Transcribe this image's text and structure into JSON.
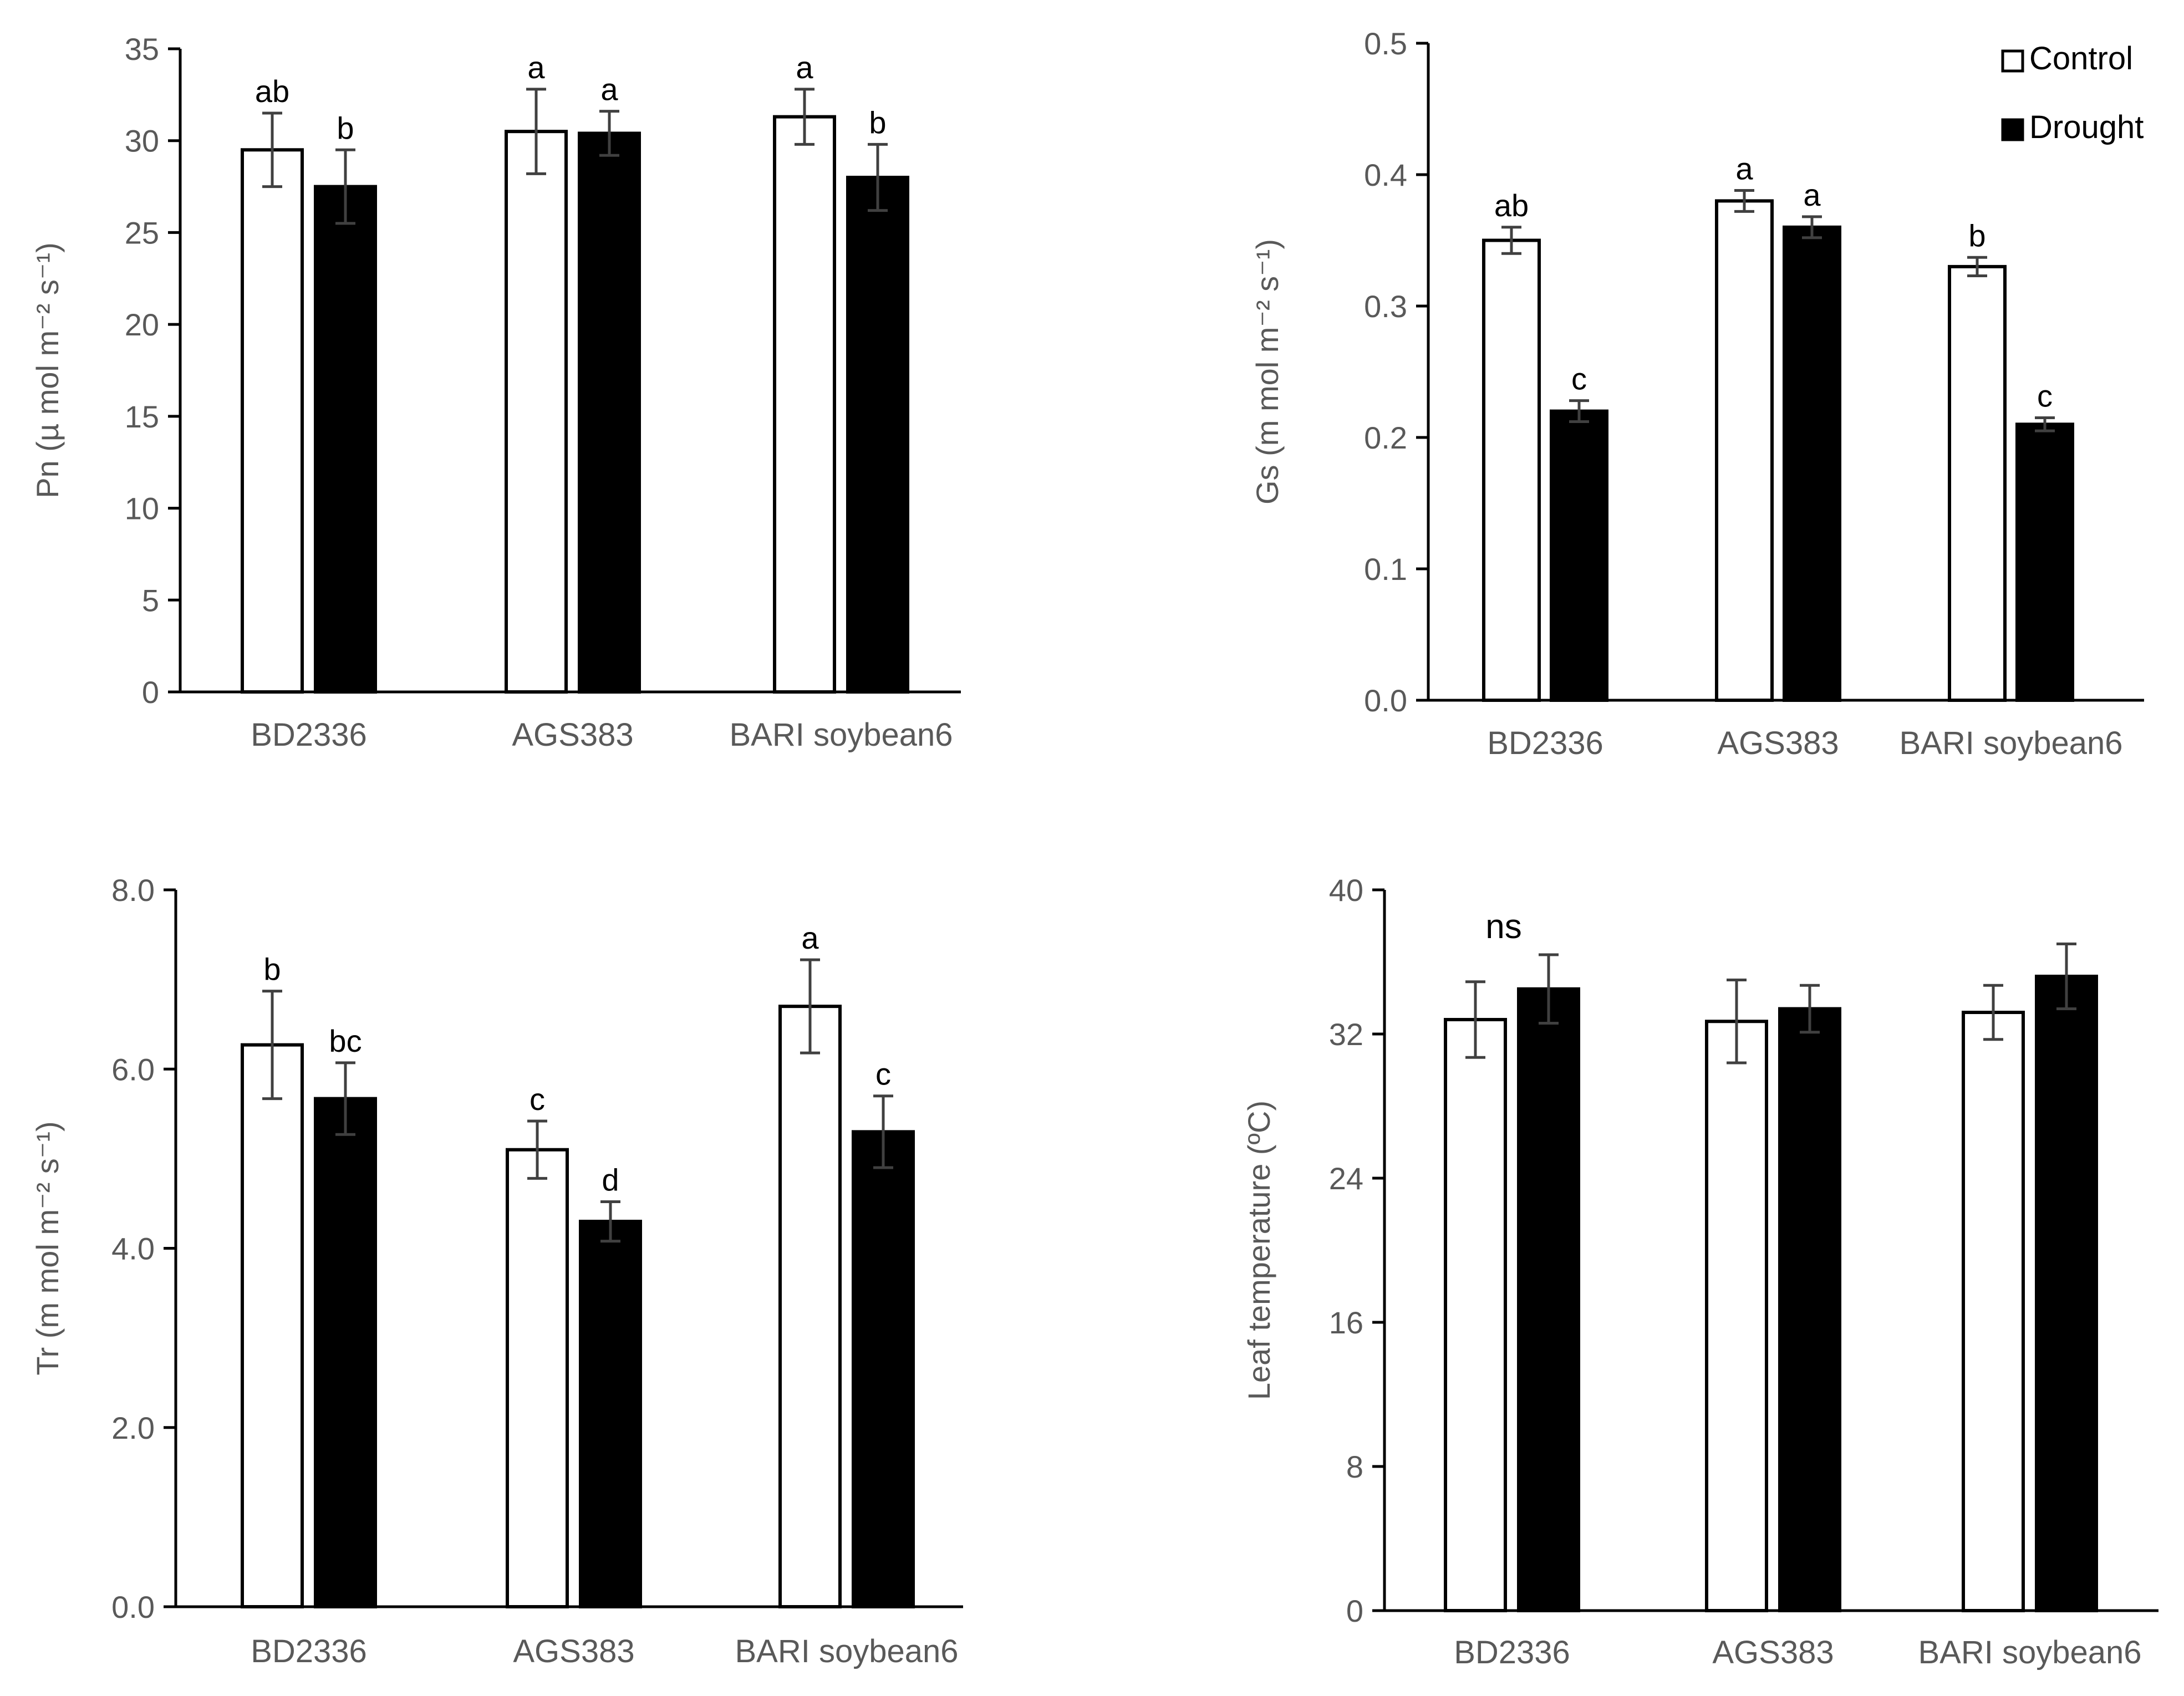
{
  "legend": {
    "entries": [
      {
        "label": "Control",
        "fill": "#ffffff"
      },
      {
        "label": "Drought",
        "fill": "#000000"
      }
    ],
    "placement": "top-right of panel 2"
  },
  "colors": {
    "axis": "#000000",
    "tick_text": "#595959",
    "axis_label": "#595959",
    "error_bar": "#404040",
    "letters": "#000000"
  },
  "chart_data": [
    {
      "type": "bar",
      "ylabel": "Pn (µ mol m⁻² s⁻¹)",
      "categories": [
        "BD2336",
        "AGS383",
        "BARI soybean6"
      ],
      "ylim": [
        0,
        35
      ],
      "yticks": [
        "0",
        "5",
        "10",
        "15",
        "20",
        "25",
        "30",
        "35"
      ],
      "series": [
        {
          "name": "Control",
          "values": [
            29.5,
            30.5,
            31.3
          ],
          "errors": [
            2.0,
            2.3,
            1.5
          ],
          "letters": [
            "ab",
            "a",
            "a"
          ]
        },
        {
          "name": "Drought",
          "values": [
            27.5,
            30.4,
            28.0
          ],
          "errors": [
            2.0,
            1.2,
            1.8
          ],
          "letters": [
            "b",
            "a",
            "b"
          ]
        }
      ]
    },
    {
      "type": "bar",
      "ylabel": "Gs (m mol m⁻² s⁻¹)",
      "categories": [
        "BD2336",
        "AGS383",
        "BARI soybean6"
      ],
      "ylim": [
        0,
        0.5
      ],
      "yticks": [
        "0.0",
        "0.1",
        "0.2",
        "0.3",
        "0.4",
        "0.5"
      ],
      "series": [
        {
          "name": "Control",
          "values": [
            0.35,
            0.38,
            0.33
          ],
          "errors": [
            0.01,
            0.008,
            0.007
          ],
          "letters": [
            "ab",
            "a",
            "b"
          ]
        },
        {
          "name": "Drought",
          "values": [
            0.22,
            0.36,
            0.21
          ],
          "errors": [
            0.008,
            0.008,
            0.005
          ],
          "letters": [
            "c",
            "a",
            "c"
          ]
        }
      ]
    },
    {
      "type": "bar",
      "ylabel": "Tr (m mol m⁻² s⁻¹)",
      "categories": [
        "BD2336",
        "AGS383",
        "BARI soybean6"
      ],
      "ylim": [
        0,
        8
      ],
      "yticks": [
        "0.0",
        "2.0",
        "4.0",
        "6.0",
        "8.0"
      ],
      "series": [
        {
          "name": "Control",
          "values": [
            6.27,
            5.1,
            6.7
          ],
          "errors": [
            0.6,
            0.32,
            0.52
          ],
          "letters": [
            "b",
            "c",
            "a"
          ]
        },
        {
          "name": "Drought",
          "values": [
            5.67,
            4.3,
            5.3
          ],
          "errors": [
            0.4,
            0.22,
            0.4
          ],
          "letters": [
            "bc",
            "d",
            "c"
          ]
        }
      ]
    },
    {
      "type": "bar",
      "ylabel": "Leaf temperature (ºC)",
      "categories": [
        "BD2336",
        "AGS383",
        "BARI soybean6"
      ],
      "ylim": [
        0,
        40
      ],
      "yticks": [
        "0",
        "8",
        "16",
        "24",
        "32",
        "40"
      ],
      "annotation": "ns",
      "series": [
        {
          "name": "Control",
          "values": [
            32.8,
            32.7,
            33.2
          ],
          "errors": [
            2.1,
            2.3,
            1.5
          ],
          "letters": [
            "",
            "",
            ""
          ]
        },
        {
          "name": "Drought",
          "values": [
            34.5,
            33.4,
            35.2
          ],
          "errors": [
            1.9,
            1.3,
            1.8
          ],
          "letters": [
            "",
            "",
            ""
          ]
        }
      ]
    }
  ]
}
